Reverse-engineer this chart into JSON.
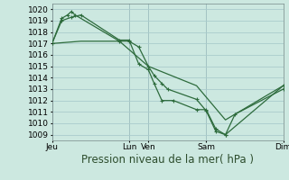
{
  "background_color": "#cce8e0",
  "grid_color": "#aacccc",
  "line_color": "#2d6b3c",
  "marker_color": "#2d6b3c",
  "ylabel_ticks": [
    1009,
    1010,
    1011,
    1012,
    1013,
    1014,
    1015,
    1016,
    1017,
    1018,
    1019,
    1020
  ],
  "ylim": [
    1008.5,
    1020.5
  ],
  "xlabel": "Pression niveau de la mer( hPa )",
  "x_tick_labels": [
    "Jeu",
    "Lun",
    "Ven",
    "Sam",
    "Dim"
  ],
  "x_tick_positions": [
    0,
    4,
    5,
    8,
    12
  ],
  "vline_positions": [
    0,
    4,
    5,
    8,
    12
  ],
  "series1_x": [
    0.0,
    0.5,
    0.8,
    1.0,
    1.2,
    3.5,
    4.0,
    4.5,
    5.0,
    5.3,
    5.7,
    6.0,
    7.5,
    8.0,
    8.5,
    9.0,
    12.0
  ],
  "series1_y": [
    1017.0,
    1019.2,
    1019.5,
    1019.8,
    1019.5,
    1017.2,
    1017.2,
    1016.7,
    1015.0,
    1014.2,
    1013.5,
    1013.0,
    1012.1,
    1011.1,
    1009.3,
    1009.0,
    1013.3
  ],
  "series2_x": [
    0.0,
    0.5,
    1.0,
    1.5,
    3.5,
    4.0,
    4.5,
    5.0,
    5.3,
    5.7,
    6.3,
    7.5,
    8.0,
    8.5,
    9.0,
    9.5,
    12.0
  ],
  "series2_y": [
    1017.0,
    1019.0,
    1019.3,
    1019.5,
    1017.3,
    1017.3,
    1015.2,
    1014.7,
    1013.5,
    1012.0,
    1012.0,
    1011.2,
    1011.2,
    1009.5,
    1009.0,
    1010.8,
    1013.0
  ],
  "series3_x": [
    0.0,
    1.5,
    3.5,
    5.0,
    7.5,
    9.0,
    12.0
  ],
  "series3_y": [
    1017.0,
    1017.2,
    1017.2,
    1015.0,
    1013.3,
    1010.3,
    1013.3
  ],
  "xlim": [
    0,
    12
  ],
  "tick_fontsize": 6.5,
  "xlabel_fontsize": 8.5,
  "marker_size": 2.5,
  "line_width": 0.9
}
